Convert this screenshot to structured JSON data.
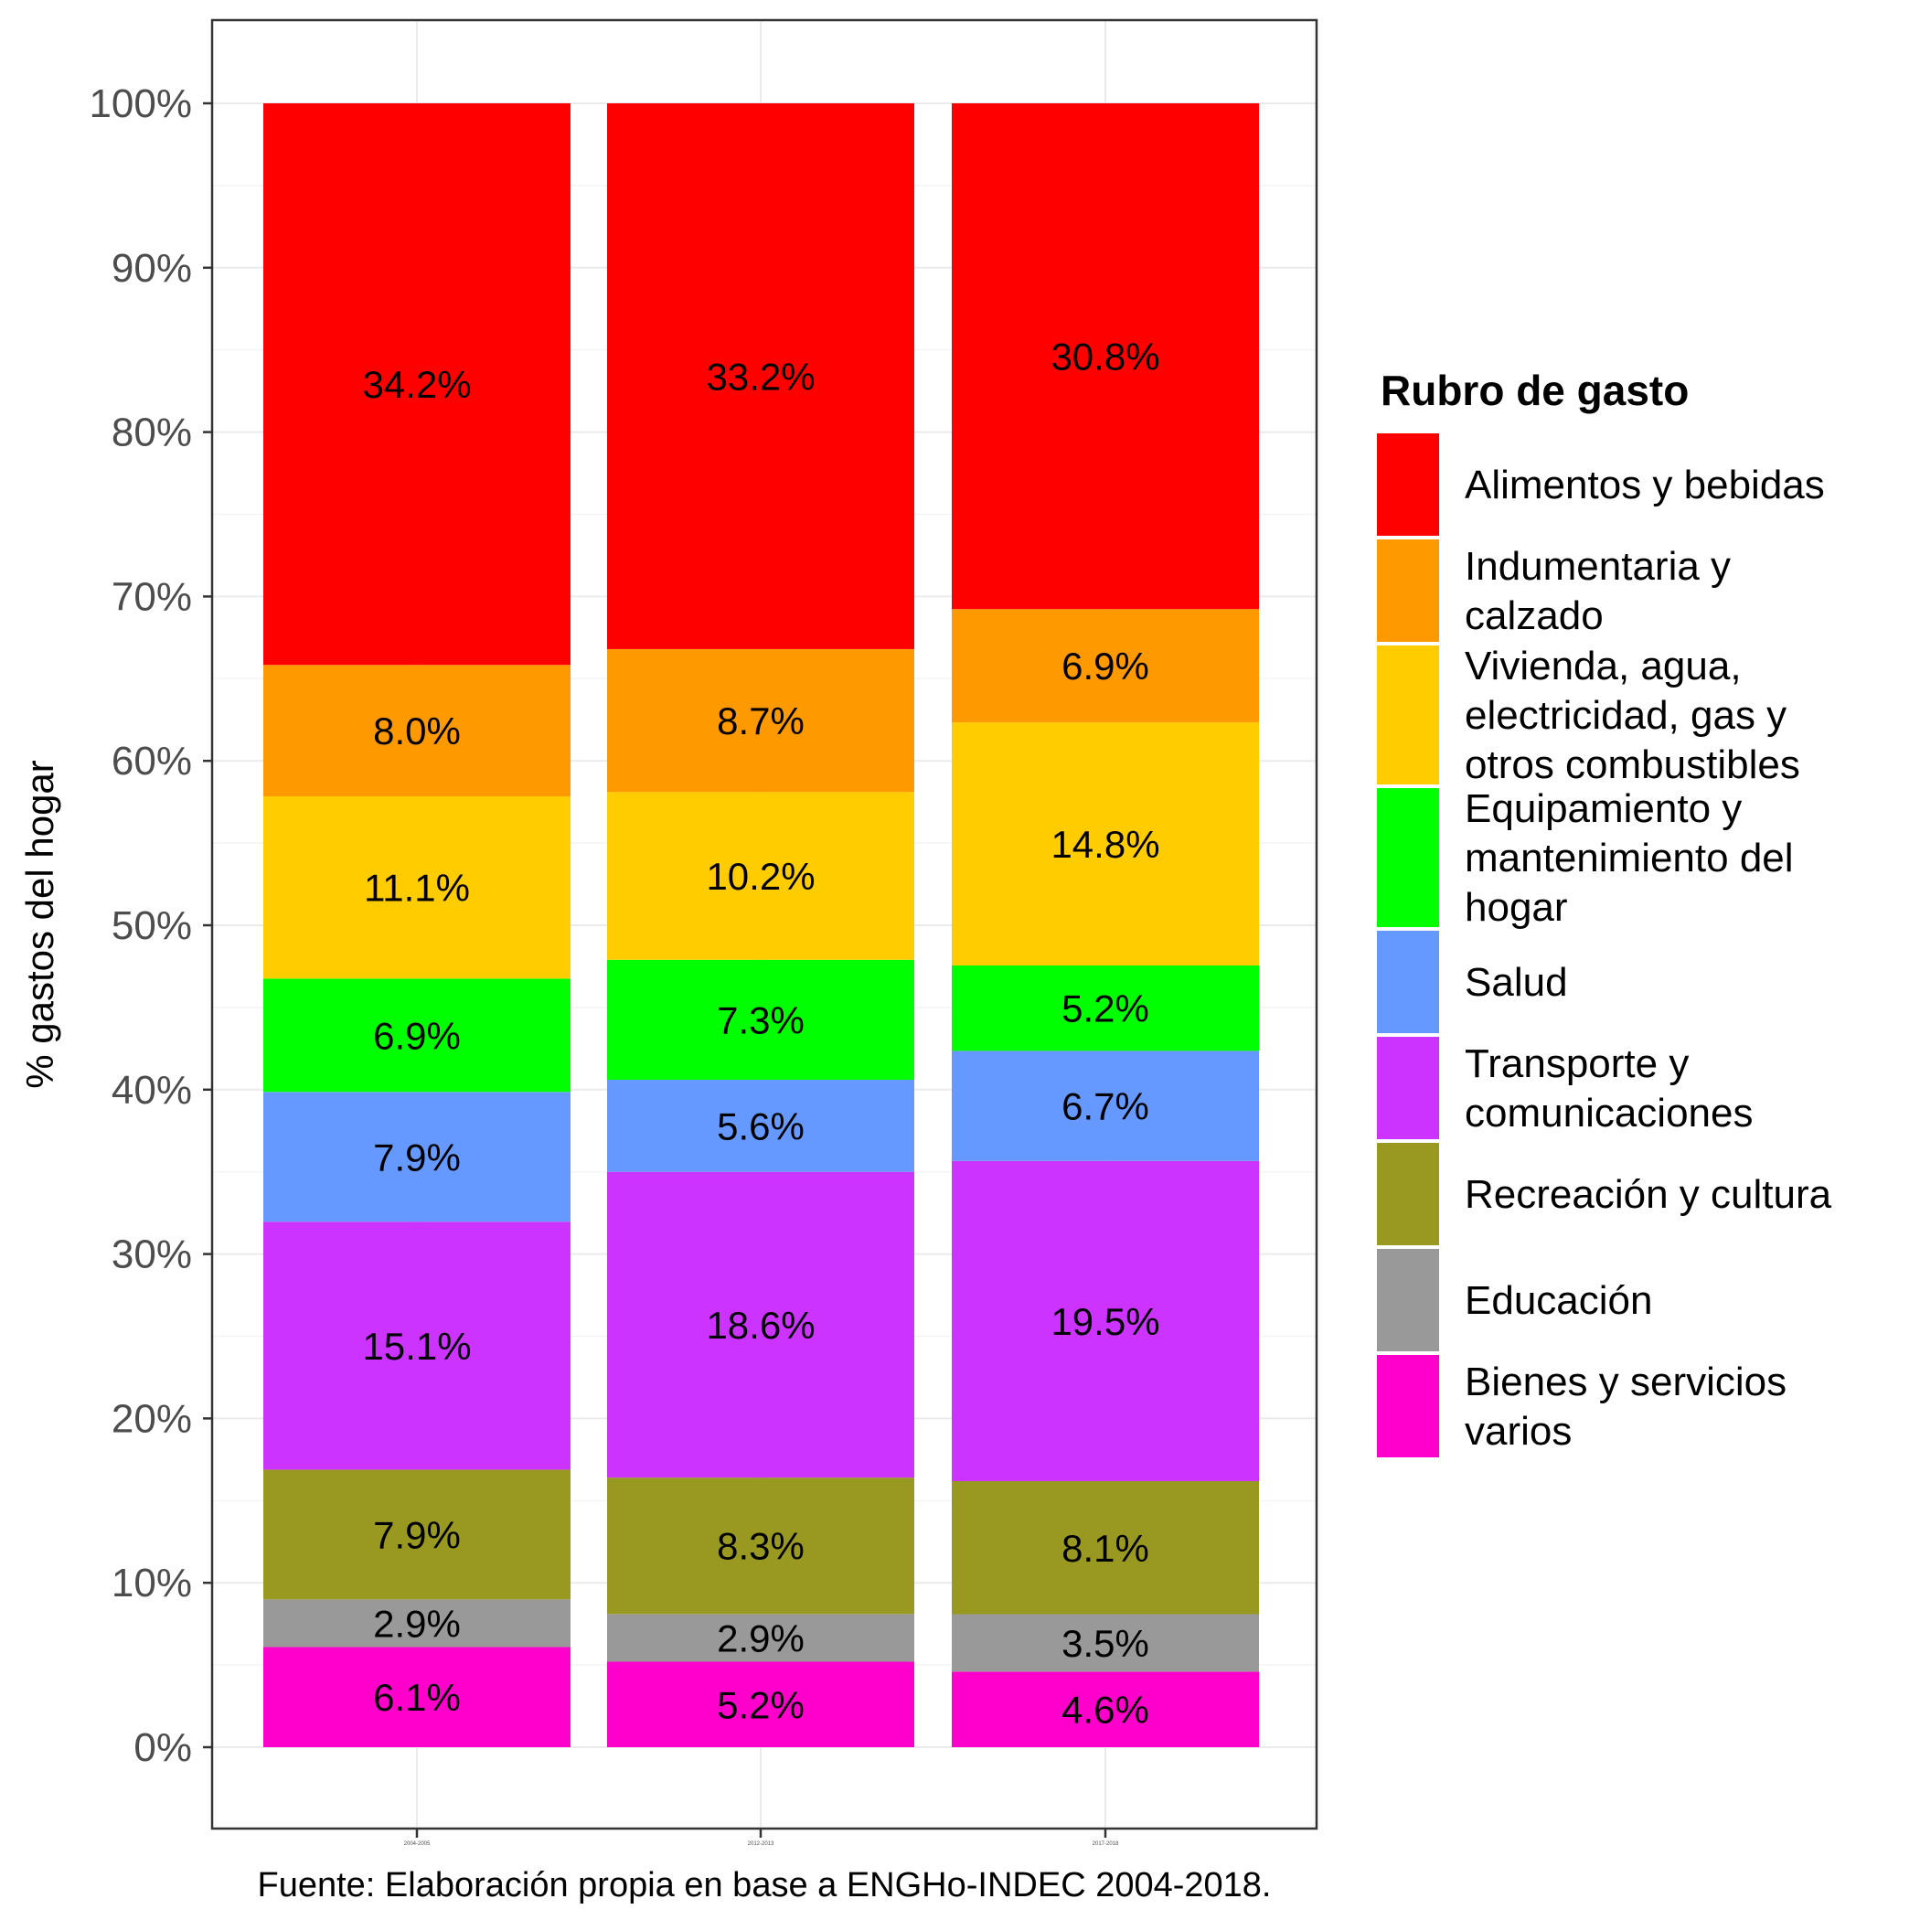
{
  "chart_data": {
    "type": "bar",
    "stacked": true,
    "categories": [
      "2004-2005",
      "2012-2013",
      "2017-2018"
    ],
    "ylabel": "% gastos del hogar",
    "xlabel": "",
    "ylim": [
      0,
      100
    ],
    "y_ticks": [
      "0%",
      "10%",
      "20%",
      "30%",
      "40%",
      "50%",
      "60%",
      "70%",
      "80%",
      "90%",
      "100%"
    ],
    "legend_title": "Rubro de gasto",
    "legend_position": "right",
    "grid": true,
    "caption": "Fuente: Elaboración propia en base a ENGHo-INDEC 2004-2018.",
    "series": [
      {
        "name": "Bienes y servicios varios",
        "legend_lines": [
          "Bienes y servicios",
          "varios"
        ],
        "color": "#FF00CC",
        "values": [
          6.1,
          5.2,
          4.6
        ],
        "labels": [
          "6.1%",
          "5.2%",
          "4.6%"
        ]
      },
      {
        "name": "Educación",
        "legend_lines": [
          "Educación"
        ],
        "color": "#999999",
        "values": [
          2.9,
          2.9,
          3.5
        ],
        "labels": [
          "2.9%",
          "2.9%",
          "3.5%"
        ]
      },
      {
        "name": "Recreación y cultura",
        "legend_lines": [
          "Recreación y cultura"
        ],
        "color": "#999922",
        "values": [
          7.9,
          8.3,
          8.1
        ],
        "labels": [
          "7.9%",
          "8.3%",
          "8.1%"
        ]
      },
      {
        "name": "Transporte y comunicaciones",
        "legend_lines": [
          "Transporte y",
          "comunicaciones"
        ],
        "color": "#CC33FF",
        "values": [
          15.1,
          18.6,
          19.5
        ],
        "labels": [
          "15.1%",
          "18.6%",
          "19.5%"
        ]
      },
      {
        "name": "Salud",
        "legend_lines": [
          "Salud"
        ],
        "color": "#6699FF",
        "values": [
          7.9,
          5.6,
          6.7
        ],
        "labels": [
          "7.9%",
          "5.6%",
          "6.7%"
        ]
      },
      {
        "name": "Equipamiento y mantenimiento del hogar",
        "legend_lines": [
          "Equipamiento y",
          "mantenimiento del",
          "hogar"
        ],
        "color": "#00FF00",
        "values": [
          6.9,
          7.3,
          5.2
        ],
        "labels": [
          "6.9%",
          "7.3%",
          "5.2%"
        ]
      },
      {
        "name": "Vivienda, agua, electricidad, gas y otros combustibles",
        "legend_lines": [
          "Vivienda, agua,",
          "electricidad, gas y",
          "otros combustibles"
        ],
        "color": "#FFCC00",
        "values": [
          11.1,
          10.2,
          14.8
        ],
        "labels": [
          "11.1%",
          "10.2%",
          "14.8%"
        ]
      },
      {
        "name": "Indumentaria y calzado",
        "legend_lines": [
          "Indumentaria y",
          "calzado"
        ],
        "color": "#FF9900",
        "values": [
          8.0,
          8.7,
          6.9
        ],
        "labels": [
          "8.0%",
          "8.7%",
          "6.9%"
        ]
      },
      {
        "name": "Alimentos y bebidas",
        "legend_lines": [
          "Alimentos y bebidas"
        ],
        "color": "#FF0000",
        "values": [
          34.2,
          33.2,
          30.8
        ],
        "labels": [
          "34.2%",
          "33.2%",
          "30.8%"
        ]
      }
    ]
  }
}
